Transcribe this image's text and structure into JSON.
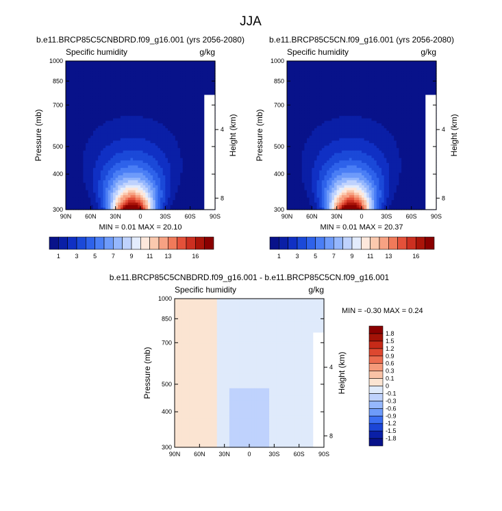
{
  "figure_title": "JJA",
  "colors": {
    "abs_levels": [
      "#08128a",
      "#0a1fa6",
      "#1030c4",
      "#1b49d8",
      "#2e62ea",
      "#4a7ef5",
      "#6e9bfa",
      "#95b7fd",
      "#bfd2fd",
      "#e3ecfd",
      "#fde8dc",
      "#fbc9ae",
      "#f7a283",
      "#f07a5a",
      "#e4513a",
      "#cc2f20",
      "#aa1409",
      "#8a0000"
    ],
    "diff_levels": [
      "#08128a",
      "#0a1fa6",
      "#1c46d6",
      "#3b6ef2",
      "#6e9bfa",
      "#95b7fd",
      "#bfd2fd",
      "#dfeafb",
      "#fbe4d2",
      "#f9c2a6",
      "#f59a7a",
      "#ec6d50",
      "#dd4830",
      "#c62a18",
      "#a31207",
      "#8a0000"
    ],
    "missing": "#ffffff"
  },
  "chart_data": [
    {
      "type": "heatmap",
      "id": "panel-nbdrd",
      "title": "b.e11.BRCP85C5CNBDRD.f09_g16.001 (yrs 2056-2080)",
      "left_label": "Specific humidity",
      "right_label": "g/kg",
      "xlabel": "",
      "ylabel": "Pressure (mb)",
      "ylabel_right": "Height (km)",
      "x_range": [
        90,
        -90
      ],
      "x_ticks": [
        90,
        60,
        30,
        0,
        -30,
        -60,
        -90
      ],
      "x_tick_labels": [
        "90N",
        "60N",
        "30N",
        "0",
        "30S",
        "60S",
        "90S"
      ],
      "y_range": [
        1000,
        300
      ],
      "y_scale": "log",
      "y_ticks": [
        1000,
        850,
        700,
        500,
        400,
        300
      ],
      "y_tick_labels": [
        "1000",
        "850",
        "700",
        "500",
        "400",
        "300"
      ],
      "height_ticks_km": [
        4,
        8
      ],
      "stats": "MIN =   0.01   MAX =  20.10",
      "max_value": 20.1,
      "field": "absolute"
    },
    {
      "type": "heatmap",
      "id": "panel-cn",
      "title": "b.e11.BRCP85C5CN.f09_g16.001 (yrs 2056-2080)",
      "left_label": "Specific humidity",
      "right_label": "g/kg",
      "xlabel": "",
      "ylabel": "Pressure (mb)",
      "ylabel_right": "Height (km)",
      "x_range": [
        90,
        -90
      ],
      "x_ticks": [
        90,
        60,
        30,
        0,
        -30,
        -60,
        -90
      ],
      "x_tick_labels": [
        "90N",
        "60N",
        "30N",
        "0",
        "30S",
        "60S",
        "90S"
      ],
      "y_range": [
        1000,
        300
      ],
      "y_scale": "log",
      "y_ticks": [
        1000,
        850,
        700,
        500,
        400,
        300
      ],
      "y_tick_labels": [
        "1000",
        "850",
        "700",
        "500",
        "400",
        "300"
      ],
      "height_ticks_km": [
        4,
        8
      ],
      "stats": "MIN =   0.01   MAX =  20.37",
      "max_value": 20.37,
      "field": "absolute"
    },
    {
      "type": "heatmap",
      "id": "panel-diff",
      "title": "b.e11.BRCP85C5CNBDRD.f09_g16.001 - b.e11.BRCP85C5CN.f09_g16.001",
      "left_label": "Specific humidity",
      "right_label": "g/kg",
      "xlabel": "",
      "ylabel": "Pressure (mb)",
      "ylabel_right": "Height (km)",
      "x_range": [
        90,
        -90
      ],
      "x_ticks": [
        90,
        60,
        30,
        0,
        -30,
        -60,
        -90
      ],
      "x_tick_labels": [
        "90N",
        "60N",
        "30N",
        "0",
        "30S",
        "60S",
        "90S"
      ],
      "y_range": [
        1000,
        300
      ],
      "y_scale": "log",
      "y_ticks": [
        1000,
        850,
        700,
        500,
        400,
        300
      ],
      "y_tick_labels": [
        "1000",
        "850",
        "700",
        "500",
        "400",
        "300"
      ],
      "height_ticks_km": [
        4,
        8
      ],
      "stats": "MIN =  -0.30   MAX =   0.24",
      "min_value": -0.3,
      "max_value": 0.24,
      "field": "difference"
    }
  ],
  "colorbars": {
    "absolute": {
      "levels": [
        1,
        2,
        3,
        4,
        5,
        6,
        7,
        8,
        9,
        10,
        11,
        12,
        13,
        14,
        15,
        16,
        17
      ],
      "labels": [
        "1",
        "3",
        "5",
        "7",
        "9",
        "11",
        "13",
        "16"
      ]
    },
    "difference": {
      "levels": [
        -1.8,
        -1.5,
        -1.2,
        -0.9,
        -0.6,
        -0.3,
        -0.1,
        0,
        0.1,
        0.3,
        0.6,
        0.9,
        1.2,
        1.5,
        1.8
      ],
      "labels": [
        "-1.8",
        "-1.5",
        "-1.2",
        "-0.9",
        "-0.6",
        "-0.3",
        "-0.1",
        "0",
        "0.1",
        "0.3",
        "0.6",
        "0.9",
        "1.2",
        "1.5",
        "1.8"
      ]
    }
  }
}
